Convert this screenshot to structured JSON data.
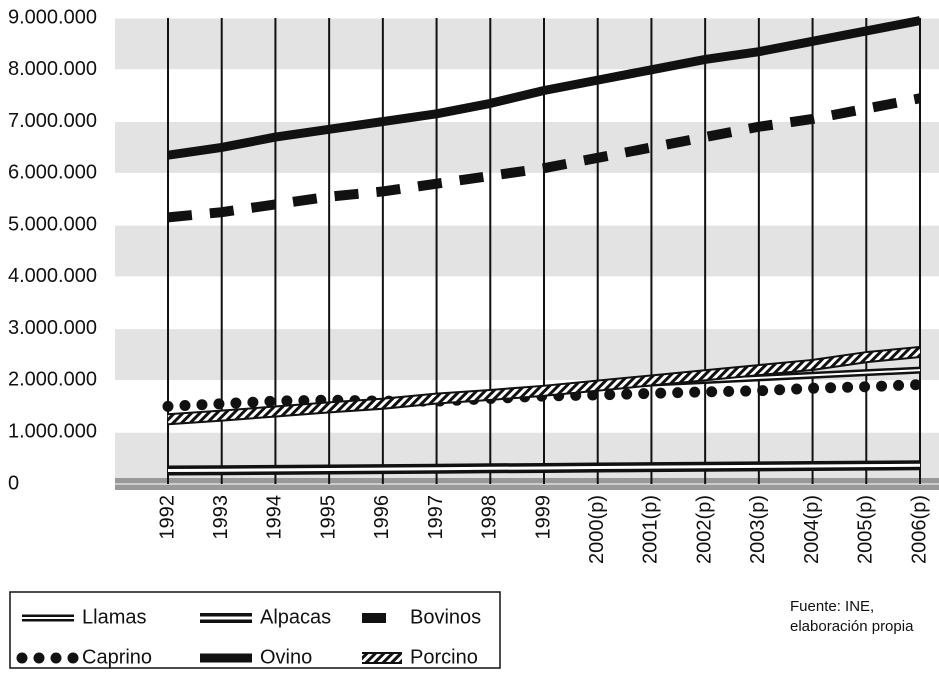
{
  "chart_data": {
    "type": "line",
    "categories": [
      "1992",
      "1993",
      "1994",
      "1995",
      "1996",
      "1997",
      "1998",
      "1999",
      "2000(p)",
      "2001(p)",
      "2002(p)",
      "2003(p)",
      "2004(p)",
      "2005(p)",
      "2006(p)"
    ],
    "series": [
      {
        "name": "Llamas",
        "color": "#111111",
        "style": "double",
        "values": [
          1250000,
          1350000,
          1420000,
          1500000,
          1580000,
          1680000,
          1750000,
          1820000,
          1880000,
          1950000,
          2000000,
          2050000,
          2100000,
          2150000,
          2200000
        ]
      },
      {
        "name": "Alpacas",
        "color": "#111111",
        "style": "double-thick",
        "values": [
          260000,
          265000,
          272000,
          280000,
          288000,
          295000,
          303000,
          310000,
          318000,
          325000,
          333000,
          340000,
          348000,
          355000,
          362000
        ]
      },
      {
        "name": "Bovinos",
        "color": "#111111",
        "style": "dashed",
        "values": [
          5150000,
          5250000,
          5400000,
          5550000,
          5650000,
          5800000,
          5950000,
          6100000,
          6300000,
          6500000,
          6700000,
          6900000,
          7050000,
          7250000,
          7450000
        ]
      },
      {
        "name": "Caprino",
        "color": "#111111",
        "style": "dotted",
        "values": [
          1500000,
          1550000,
          1600000,
          1620000,
          1600000,
          1600000,
          1650000,
          1700000,
          1720000,
          1750000,
          1780000,
          1800000,
          1850000,
          1880000,
          1920000
        ]
      },
      {
        "name": "Ovino",
        "color": "#111111",
        "style": "solid",
        "values": [
          6350000,
          6500000,
          6700000,
          6850000,
          7000000,
          7150000,
          7350000,
          7600000,
          7800000,
          8000000,
          8200000,
          8350000,
          8550000,
          8750000,
          8950000
        ]
      },
      {
        "name": "Porcino",
        "color": "#111111",
        "style": "hatched",
        "values": [
          1250000,
          1320000,
          1400000,
          1480000,
          1550000,
          1650000,
          1720000,
          1800000,
          1900000,
          2000000,
          2100000,
          2200000,
          2300000,
          2450000,
          2550000
        ]
      }
    ],
    "ylim": [
      0,
      9000000
    ],
    "yticks": [
      0,
      {
        "value": 1000000,
        "label": "1.000.000"
      },
      {
        "value": 2000000,
        "label": "2.000.000"
      },
      {
        "value": 3000000,
        "label": "3.000.000"
      },
      {
        "value": 4000000,
        "label": "4.000.000"
      },
      {
        "value": 5000000,
        "label": "5.000.000"
      },
      {
        "value": 6000000,
        "label": "6.000.000"
      },
      {
        "value": 7000000,
        "label": "7.000.000"
      },
      {
        "value": 8000000,
        "label": "8.000.000"
      },
      {
        "value": 9000000,
        "label": "9.000.000"
      }
    ],
    "grid": "bands",
    "source": [
      "Fuente: INE,",
      "elaboración propia"
    ]
  }
}
